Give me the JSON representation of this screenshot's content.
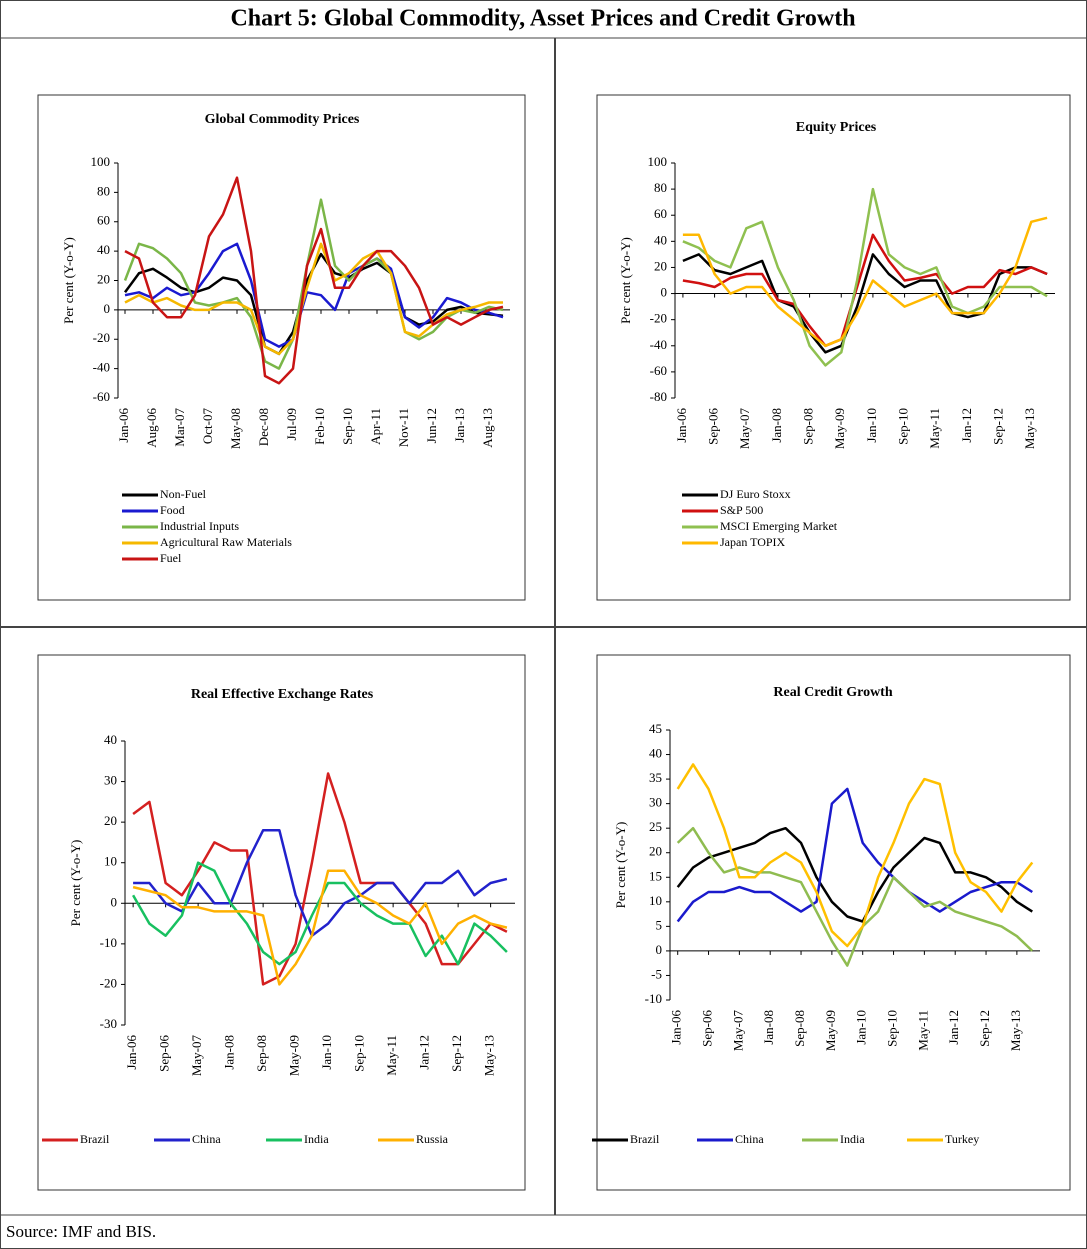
{
  "title": "Chart 5: Global Commodity, Asset Prices and Credit Growth",
  "source": "Source: IMF and BIS.",
  "chart_data": [
    {
      "type": "line",
      "title": "Global Commodity Prices",
      "y_label": "Per cent (Y-o-Y)",
      "grid": false,
      "legend": "bottom",
      "categories": [
        "Jan-06",
        null,
        "Aug-06",
        null,
        "Mar-07",
        null,
        "Oct-07",
        null,
        "May-08",
        null,
        "Dec-08",
        null,
        "Jul-09",
        null,
        "Feb-10",
        null,
        "Sep-10",
        null,
        "Apr-11",
        null,
        "Nov-11",
        null,
        "Jun-12",
        null,
        "Jan-13",
        null,
        "Aug-13",
        null
      ],
      "ylim": [
        -60,
        100
      ],
      "yticks": [
        -60,
        -40,
        -20,
        0,
        20,
        40,
        60,
        80,
        100
      ],
      "series": [
        {
          "name": "Non-Fuel",
          "color": "#000000",
          "values": [
            12,
            25,
            28,
            22,
            15,
            12,
            15,
            22,
            20,
            10,
            -25,
            -30,
            -15,
            20,
            38,
            25,
            22,
            28,
            32,
            25,
            -5,
            -10,
            -8,
            0,
            2,
            -2,
            -3,
            -4
          ]
        },
        {
          "name": "Food",
          "color": "#1a1ad0",
          "values": [
            10,
            12,
            8,
            15,
            10,
            12,
            25,
            40,
            45,
            20,
            -20,
            -25,
            -20,
            12,
            10,
            0,
            25,
            30,
            35,
            28,
            -5,
            -12,
            -5,
            8,
            5,
            0,
            -2,
            -5
          ]
        },
        {
          "name": "Industrial Inputs",
          "color": "#7ab648",
          "values": [
            20,
            45,
            42,
            35,
            25,
            5,
            3,
            5,
            8,
            -5,
            -35,
            -40,
            -20,
            30,
            75,
            30,
            20,
            30,
            35,
            25,
            -15,
            -20,
            -15,
            -5,
            0,
            -2,
            2,
            0
          ]
        },
        {
          "name": "Agricultural Raw Materials",
          "color": "#f5b800",
          "values": [
            5,
            10,
            5,
            8,
            3,
            0,
            0,
            5,
            5,
            0,
            -25,
            -30,
            -20,
            15,
            45,
            20,
            25,
            35,
            40,
            25,
            -15,
            -18,
            -10,
            -3,
            0,
            2,
            5,
            5
          ]
        },
        {
          "name": "Fuel",
          "color": "#c81414",
          "values": [
            40,
            35,
            5,
            -5,
            -5,
            10,
            50,
            65,
            90,
            40,
            -45,
            -50,
            -40,
            30,
            55,
            15,
            15,
            30,
            40,
            40,
            30,
            15,
            -10,
            -5,
            -10,
            -5,
            0,
            2
          ]
        }
      ]
    },
    {
      "type": "line",
      "title": "Equity Prices",
      "y_label": "Per cent (Y-o-Y)",
      "grid": false,
      "legend": "bottom",
      "categories": [
        "Jan-06",
        null,
        "Sep-06",
        null,
        "May-07",
        null,
        "Jan-08",
        null,
        "Sep-08",
        null,
        "May-09",
        null,
        "Jan-10",
        null,
        "Sep-10",
        null,
        "May-11",
        null,
        "Jan-12",
        null,
        "Sep-12",
        null,
        "May-13",
        null
      ],
      "ylim": [
        -80,
        100
      ],
      "yticks": [
        -80,
        -60,
        -40,
        -20,
        0,
        20,
        40,
        60,
        80,
        100
      ],
      "series": [
        {
          "name": "DJ Euro Stoxx",
          "color": "#000000",
          "values": [
            25,
            30,
            18,
            15,
            20,
            25,
            -5,
            -10,
            -30,
            -45,
            -40,
            -10,
            30,
            15,
            5,
            10,
            10,
            -15,
            -18,
            -15,
            15,
            20,
            20,
            15
          ]
        },
        {
          "name": "S&P 500",
          "color": "#d01010",
          "values": [
            10,
            8,
            5,
            12,
            15,
            15,
            -5,
            -8,
            -25,
            -40,
            -35,
            5,
            45,
            25,
            10,
            12,
            15,
            0,
            5,
            5,
            18,
            15,
            20,
            15
          ]
        },
        {
          "name": "MSCI Emerging Market",
          "color": "#8fc050",
          "values": [
            40,
            35,
            25,
            20,
            50,
            55,
            20,
            -5,
            -40,
            -55,
            -45,
            10,
            80,
            30,
            20,
            15,
            20,
            -10,
            -15,
            -10,
            5,
            5,
            5,
            -2
          ]
        },
        {
          "name": "Japan TOPIX",
          "color": "#ffb800",
          "values": [
            45,
            45,
            15,
            0,
            5,
            5,
            -10,
            -20,
            -30,
            -40,
            -35,
            -15,
            10,
            0,
            -10,
            -5,
            0,
            -15,
            -15,
            -15,
            0,
            20,
            55,
            58
          ]
        }
      ]
    },
    {
      "type": "line",
      "title": "Real Effective Exchange Rates",
      "y_label": "Per cent (Y-o-Y)",
      "grid": false,
      "legend": "bottom",
      "categories": [
        "Jan-06",
        null,
        "Sep-06",
        null,
        "May-07",
        null,
        "Jan-08",
        null,
        "Sep-08",
        null,
        "May-09",
        null,
        "Jan-10",
        null,
        "Sep-10",
        null,
        "May-11",
        null,
        "Jan-12",
        null,
        "Sep-12",
        null,
        "May-13",
        null
      ],
      "ylim": [
        -30,
        40
      ],
      "yticks": [
        -30,
        -20,
        -10,
        0,
        10,
        20,
        30,
        40
      ],
      "series": [
        {
          "name": "Brazil",
          "color": "#d42020",
          "values": [
            22,
            25,
            5,
            2,
            8,
            15,
            13,
            13,
            -20,
            -18,
            -10,
            10,
            32,
            20,
            5,
            5,
            5,
            0,
            -5,
            -15,
            -15,
            -10,
            -5,
            -7
          ]
        },
        {
          "name": "China",
          "color": "#2222cc",
          "values": [
            5,
            5,
            0,
            -2,
            5,
            0,
            0,
            10,
            18,
            18,
            2,
            -8,
            -5,
            0,
            2,
            5,
            5,
            0,
            5,
            5,
            8,
            2,
            5,
            6
          ]
        },
        {
          "name": "India",
          "color": "#18c060",
          "values": [
            2,
            -5,
            -8,
            -3,
            10,
            8,
            0,
            -5,
            -12,
            -15,
            -12,
            -3,
            5,
            5,
            0,
            -3,
            -5,
            -5,
            -13,
            -8,
            -15,
            -5,
            -8,
            -12
          ]
        },
        {
          "name": "Russia",
          "color": "#ffb000",
          "values": [
            4,
            3,
            2,
            -1,
            -1,
            -2,
            -2,
            -2,
            -3,
            -20,
            -15,
            -8,
            8,
            8,
            2,
            0,
            -3,
            -5,
            0,
            -10,
            -5,
            -3,
            -5,
            -6
          ]
        }
      ]
    },
    {
      "type": "line",
      "title": "Real Credit Growth",
      "y_label": "Per cent (Y-o-Y)",
      "grid": false,
      "legend": "bottom",
      "categories": [
        "Jan-06",
        null,
        "Sep-06",
        null,
        "May-07",
        null,
        "Jan-08",
        null,
        "Sep-08",
        null,
        "May-09",
        null,
        "Jan-10",
        null,
        "Sep-10",
        null,
        "May-11",
        null,
        "Jan-12",
        null,
        "Sep-12",
        null,
        "May-13",
        null
      ],
      "ylim": [
        -10,
        45
      ],
      "yticks": [
        -10,
        -5,
        0,
        5,
        10,
        15,
        20,
        25,
        30,
        35,
        40,
        45
      ],
      "series": [
        {
          "name": "Brazil",
          "color": "#000000",
          "values": [
            13,
            17,
            19,
            20,
            21,
            22,
            24,
            25,
            22,
            15,
            10,
            7,
            6,
            12,
            17,
            20,
            23,
            22,
            16,
            16,
            15,
            13,
            10,
            8
          ]
        },
        {
          "name": "China",
          "color": "#1a1acc",
          "values": [
            6,
            10,
            12,
            12,
            13,
            12,
            12,
            10,
            8,
            10,
            30,
            33,
            22,
            18,
            15,
            12,
            10,
            8,
            10,
            12,
            13,
            14,
            14,
            12
          ]
        },
        {
          "name": "India",
          "color": "#8fbc50",
          "values": [
            22,
            25,
            20,
            16,
            17,
            16,
            16,
            15,
            14,
            8,
            2,
            -3,
            5,
            8,
            15,
            12,
            9,
            10,
            8,
            7,
            6,
            5,
            3,
            0
          ]
        },
        {
          "name": "Turkey",
          "color": "#ffc000",
          "values": [
            33,
            38,
            33,
            25,
            15,
            15,
            18,
            20,
            18,
            12,
            4,
            1,
            5,
            15,
            22,
            30,
            35,
            34,
            20,
            14,
            12,
            8,
            14,
            18
          ]
        }
      ]
    }
  ]
}
